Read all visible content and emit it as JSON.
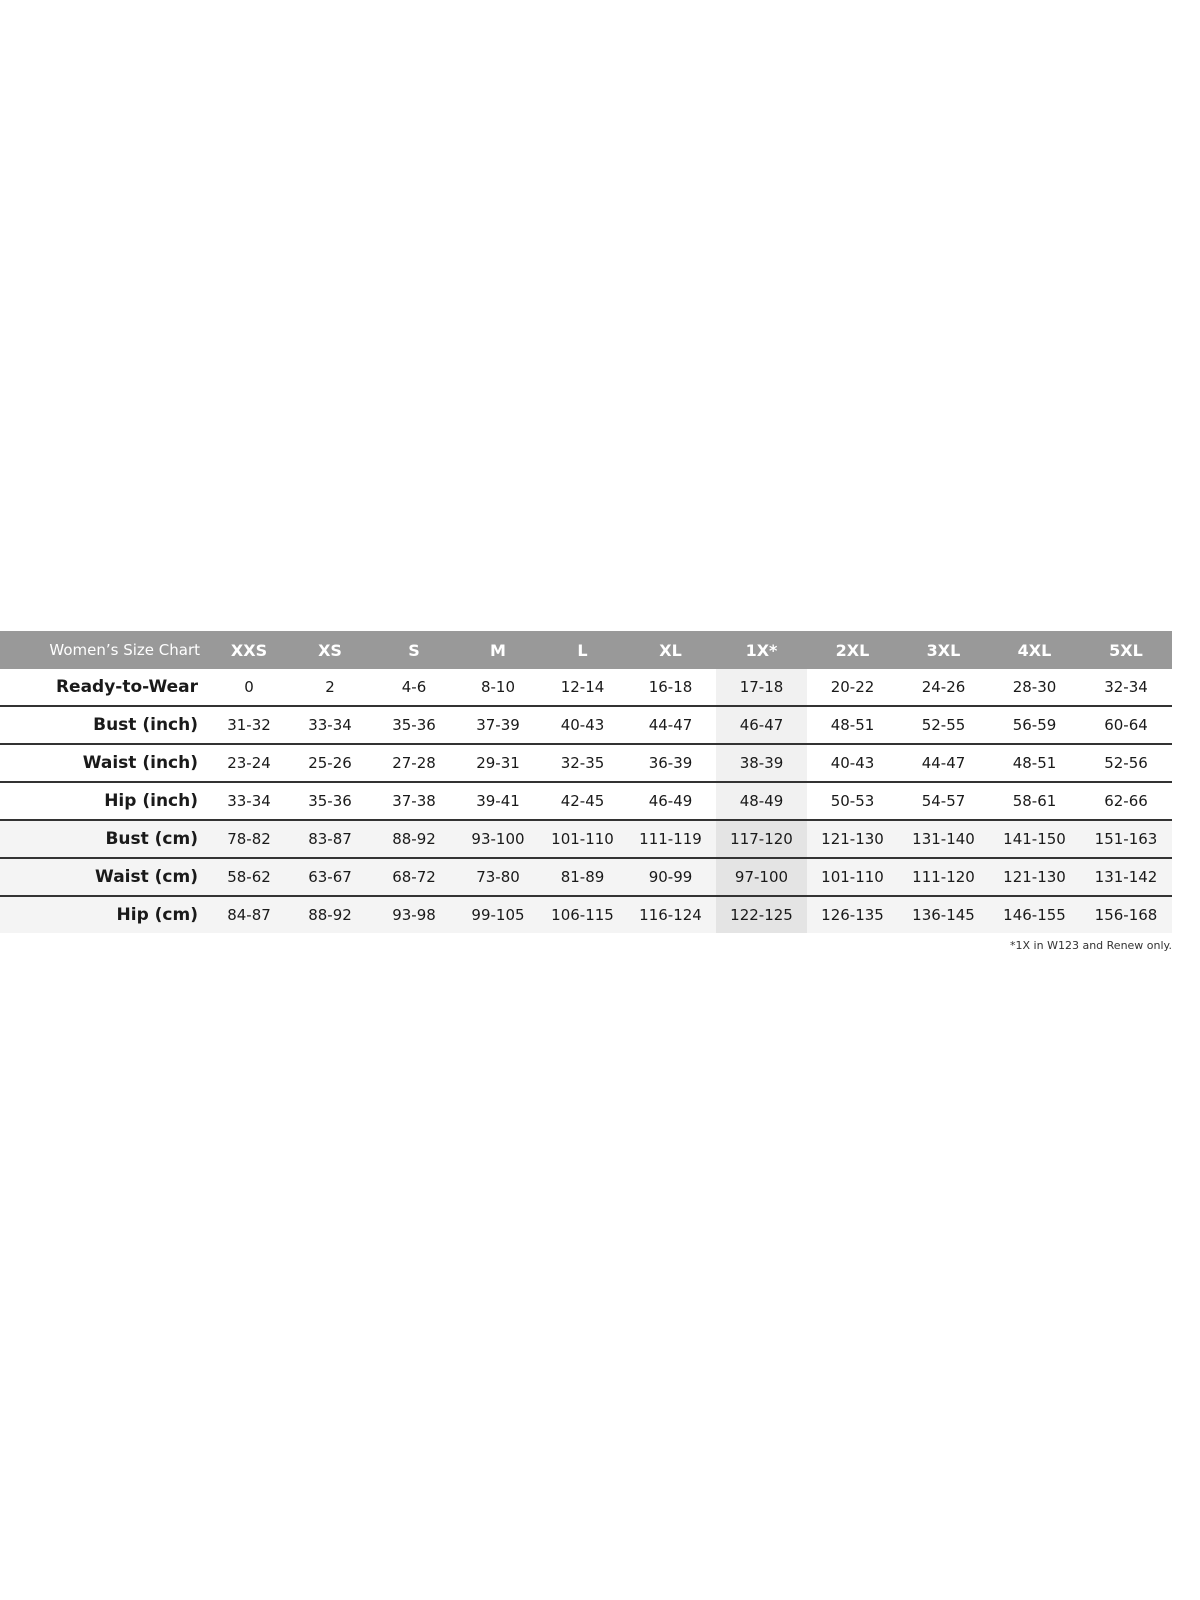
{
  "table": {
    "corner_label": "Women’s Size Chart",
    "columns": [
      "XXS",
      "XS",
      "S",
      "M",
      "L",
      "XL",
      "1X*",
      "2XL",
      "3XL",
      "4XL",
      "5XL"
    ],
    "highlight_column": "1X*",
    "rows": [
      {
        "label": "Ready-to-Wear",
        "unit": "inch",
        "values": [
          "0",
          "2",
          "4-6",
          "8-10",
          "12-14",
          "16-18",
          "17-18",
          "20-22",
          "24-26",
          "28-30",
          "32-34"
        ]
      },
      {
        "label": "Bust (inch)",
        "unit": "inch",
        "values": [
          "31-32",
          "33-34",
          "35-36",
          "37-39",
          "40-43",
          "44-47",
          "46-47",
          "48-51",
          "52-55",
          "56-59",
          "60-64"
        ]
      },
      {
        "label": "Waist (inch)",
        "unit": "inch",
        "values": [
          "23-24",
          "25-26",
          "27-28",
          "29-31",
          "32-35",
          "36-39",
          "38-39",
          "40-43",
          "44-47",
          "48-51",
          "52-56"
        ]
      },
      {
        "label": "Hip (inch)",
        "unit": "inch",
        "values": [
          "33-34",
          "35-36",
          "37-38",
          "39-41",
          "42-45",
          "46-49",
          "48-49",
          "50-53",
          "54-57",
          "58-61",
          "62-66"
        ]
      },
      {
        "label": "Bust (cm)",
        "unit": "cm",
        "values": [
          "78-82",
          "83-87",
          "88-92",
          "93-100",
          "101-110",
          "111-119",
          "117-120",
          "121-130",
          "131-140",
          "141-150",
          "151-163"
        ]
      },
      {
        "label": "Waist (cm)",
        "unit": "cm",
        "values": [
          "58-62",
          "63-67",
          "68-72",
          "73-80",
          "81-89",
          "90-99",
          "97-100",
          "101-110",
          "111-120",
          "121-130",
          "131-142"
        ]
      },
      {
        "label": "Hip (cm)",
        "unit": "cm",
        "values": [
          "84-87",
          "88-92",
          "93-98",
          "99-105",
          "106-115",
          "116-124",
          "122-125",
          "126-135",
          "136-145",
          "146-155",
          "156-168"
        ]
      }
    ]
  },
  "footnote": "*1X in W123 and Renew only.",
  "colors": {
    "header_bg": "#999999",
    "header_text": "#ffffff",
    "cm_row_bg": "#f4f4f4",
    "highlight_bg": "#f1f1f1"
  }
}
